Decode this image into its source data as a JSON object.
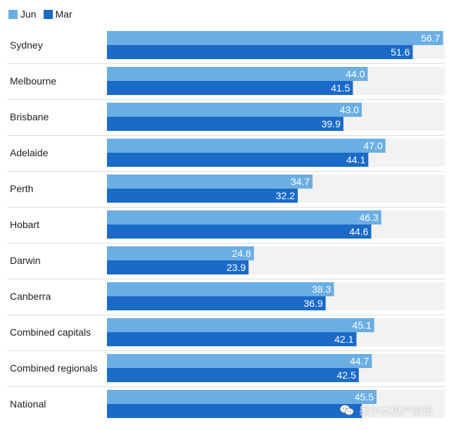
{
  "colors": {
    "jun": "#6aaee4",
    "mar": "#1b6ac8",
    "track": "#f2f2f2",
    "label_text": "#ffffff",
    "city_text": "#222222"
  },
  "legend": {
    "items": [
      {
        "label": "Jun",
        "color": "#6aaee4"
      },
      {
        "label": "Mar",
        "color": "#1b6ac8"
      }
    ]
  },
  "watermark": {
    "text": "墨尔本房产资讯",
    "icon": "wechat-logo-icon"
  },
  "chart_data": {
    "type": "bar",
    "orientation": "horizontal",
    "categories": [
      "Sydney",
      "Melbourne",
      "Brisbane",
      "Adelaide",
      "Perth",
      "Hobart",
      "Darwin",
      "Canberra",
      "Combined capitals",
      "Combined regionals",
      "National"
    ],
    "series": [
      {
        "name": "Jun",
        "values": [
          56.7,
          44.0,
          43.0,
          47.0,
          34.7,
          46.3,
          24.8,
          38.3,
          45.1,
          44.7,
          45.5
        ]
      },
      {
        "name": "Mar",
        "values": [
          51.6,
          41.5,
          39.9,
          44.1,
          32.2,
          44.6,
          23.9,
          36.9,
          42.1,
          42.5,
          43.0
        ]
      }
    ],
    "value_labels": {
      "Jun": [
        "56.7",
        "44.0",
        "43.0",
        "47.0",
        "34.7",
        "46.3",
        "24.8",
        "38.3",
        "45.1",
        "44.7",
        "45.5"
      ],
      "Mar": [
        "51.6",
        "41.5",
        "39.9",
        "44.1",
        "32.2",
        "44.6",
        "23.9",
        "36.9",
        "42.1",
        "42.5",
        ""
      ]
    },
    "xlim": [
      0,
      57
    ],
    "legend_position": "top-left",
    "grid": false
  }
}
